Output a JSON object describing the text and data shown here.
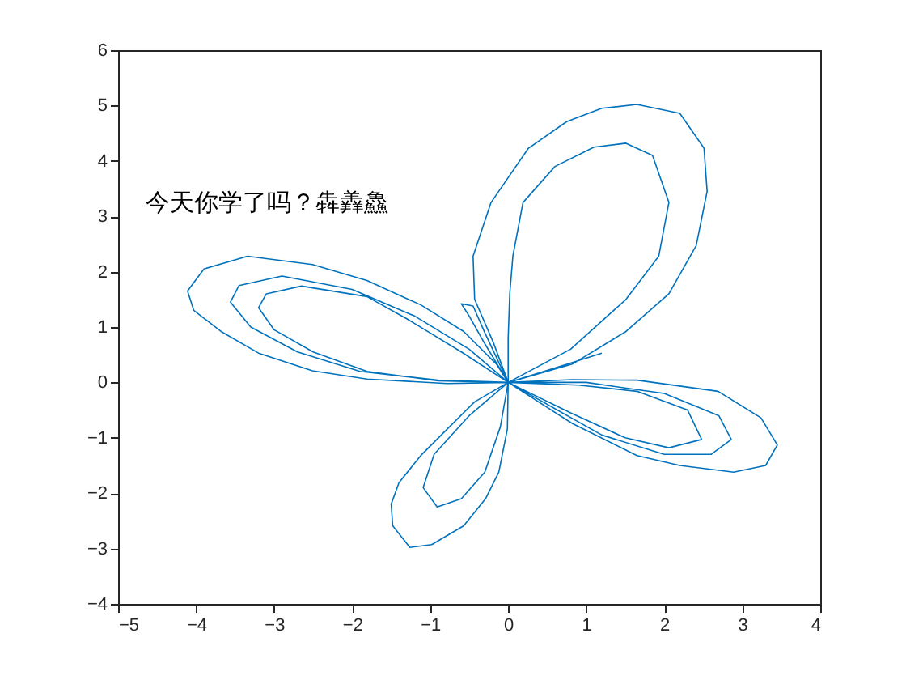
{
  "chart_data": {
    "type": "line",
    "xlim": [
      -5,
      4
    ],
    "ylim": [
      -4,
      6
    ],
    "xticks": [
      -5,
      -4,
      -3,
      -2,
      -1,
      0,
      1,
      2,
      3,
      4
    ],
    "yticks": [
      -4,
      -3,
      -2,
      -1,
      0,
      1,
      2,
      3,
      4,
      5,
      6
    ],
    "annotations": [
      "今天你学了吗？犇羴鱻"
    ],
    "series": [
      {
        "color": "#0072bd",
        "x": [
          0,
          -0.19,
          -0.43,
          -0.45,
          -0.22,
          0.26,
          0.75,
          1.2,
          1.65,
          2.2,
          2.51,
          2.55,
          2.41,
          2.06,
          1.51,
          0.82,
          0,
          0.82,
          1.65,
          2.69,
          3.24,
          3.45,
          3.3,
          2.89,
          2.2,
          1.65,
          0.82,
          0,
          -0.01,
          -0.12,
          -0.29,
          -0.57,
          -0.98,
          -1.26,
          -1.48,
          -1.5,
          -1.4,
          -1.12,
          -0.78,
          -0.43,
          0,
          -0.15,
          -0.57,
          -1.12,
          -1.81,
          -2.51,
          -3.34,
          -3.9,
          -4.11,
          -4.03,
          -3.68,
          -3.2,
          -2.51,
          -1.81,
          -0.78,
          0,
          -0.6,
          -1.3,
          -1.81,
          -2.65,
          -3.1,
          -3.2,
          -3.0,
          -2.5,
          -1.81,
          -0.9,
          0,
          -0.5,
          -1.2,
          -2.0,
          -2.9,
          -3.45,
          -3.56,
          -3.3,
          -2.7,
          -1.9,
          -0.9,
          0,
          0.0,
          0.02,
          0.06,
          0.19,
          0.6,
          1.1,
          1.51,
          1.85,
          2.06,
          1.93,
          1.51,
          0.8,
          0,
          0.9,
          1.65,
          2.3,
          2.48,
          2.06,
          1.5,
          0.8,
          0,
          1.0,
          2.0,
          2.7,
          2.86,
          2.6,
          2.0,
          1.2,
          0,
          -0.1,
          -0.3,
          -0.6,
          -0.91,
          -1.09,
          -0.95,
          -0.5,
          0,
          -0.3,
          -0.5,
          -0.6,
          -0.45,
          -0.3,
          0,
          0.8,
          1.2
        ],
        "values": [
          0,
          0.72,
          1.5,
          2.28,
          3.25,
          4.23,
          4.71,
          4.95,
          5.02,
          4.86,
          4.23,
          3.45,
          2.47,
          1.6,
          0.92,
          0.33,
          0,
          0.05,
          0.04,
          -0.16,
          -0.64,
          -1.13,
          -1.5,
          -1.62,
          -1.5,
          -1.32,
          -0.74,
          0,
          -0.84,
          -1.62,
          -2.1,
          -2.59,
          -2.93,
          -2.98,
          -2.59,
          -2.2,
          -1.81,
          -1.32,
          -0.84,
          -0.35,
          0,
          0.33,
          0.92,
          1.4,
          1.84,
          2.13,
          2.28,
          2.05,
          1.65,
          1.3,
          0.92,
          0.53,
          0.21,
          0.06,
          -0.02,
          0,
          0.55,
          1.15,
          1.55,
          1.74,
          1.6,
          1.35,
          0.95,
          0.55,
          0.2,
          0.03,
          0,
          0.6,
          1.2,
          1.68,
          1.92,
          1.75,
          1.45,
          1.0,
          0.55,
          0.2,
          0.04,
          0,
          0.8,
          1.6,
          2.28,
          3.25,
          3.9,
          4.25,
          4.32,
          4.1,
          3.25,
          2.28,
          1.5,
          0.6,
          0,
          -0.05,
          -0.16,
          -0.5,
          -1.03,
          -1.18,
          -1.0,
          -0.55,
          0,
          0.0,
          -0.2,
          -0.6,
          -1.03,
          -1.3,
          -1.3,
          -0.95,
          0,
          -0.8,
          -1.62,
          -2.1,
          -2.25,
          -1.9,
          -1.3,
          -0.6,
          0,
          0.7,
          1.2,
          1.42,
          1.38,
          0.9,
          0,
          0.35,
          0.53
        ]
      }
    ]
  }
}
